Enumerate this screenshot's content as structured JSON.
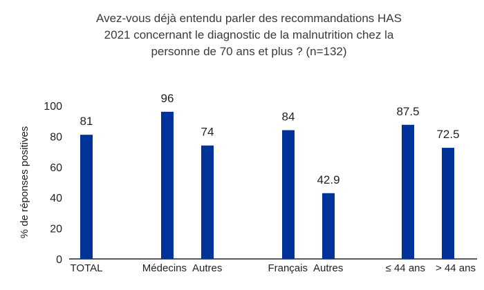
{
  "chart_data": {
    "type": "bar",
    "title_lines": [
      "Avez-vous déjà entendu parler des recommandations HAS",
      "2021 concernant le diagnostic de la malnutrition chez la",
      "personne de 70 ans et plus ? (n=132)"
    ],
    "ylabel": "% de réponses positives",
    "xlabel": "",
    "ylim": [
      0,
      100
    ],
    "yticks": [
      0,
      20,
      40,
      60,
      80,
      100
    ],
    "grid": false,
    "legend": "none",
    "bar_color": "#003399",
    "categories": [
      "TOTAL",
      "Médecins",
      "Autres",
      "Français",
      "Autres",
      "≤ 44 ans",
      "> 44 ans"
    ],
    "values": [
      81,
      96,
      74,
      84,
      42.9,
      87.5,
      72.5
    ],
    "value_labels": [
      "81",
      "96",
      "74",
      "84",
      "42.9",
      "87.5",
      "72.5"
    ]
  }
}
